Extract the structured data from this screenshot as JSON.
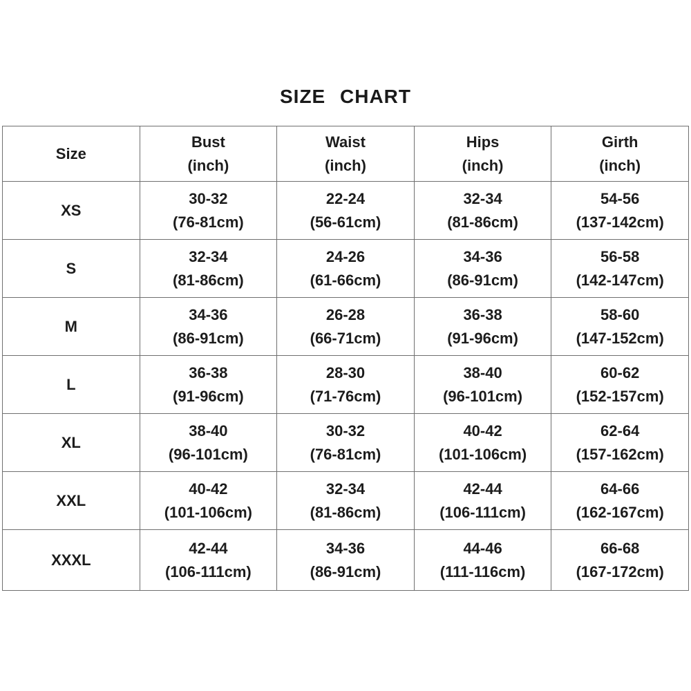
{
  "title": "SIZE CHART",
  "chart_data": {
    "type": "table",
    "title": "SIZE CHART",
    "columns": [
      {
        "label": "Size",
        "unit": ""
      },
      {
        "label": "Bust",
        "unit": "(inch)"
      },
      {
        "label": "Waist",
        "unit": "(inch)"
      },
      {
        "label": "Hips",
        "unit": "(inch)"
      },
      {
        "label": "Girth",
        "unit": "(inch)"
      }
    ],
    "rows": [
      {
        "size": "XS",
        "cells": [
          {
            "inch": "30-32",
            "cm": "(76-81cm)"
          },
          {
            "inch": "22-24",
            "cm": "(56-61cm)"
          },
          {
            "inch": "32-34",
            "cm": "(81-86cm)"
          },
          {
            "inch": "54-56",
            "cm": "(137-142cm)"
          }
        ]
      },
      {
        "size": "S",
        "cells": [
          {
            "inch": "32-34",
            "cm": "(81-86cm)"
          },
          {
            "inch": "24-26",
            "cm": "(61-66cm)"
          },
          {
            "inch": "34-36",
            "cm": "(86-91cm)"
          },
          {
            "inch": "56-58",
            "cm": "(142-147cm)"
          }
        ]
      },
      {
        "size": "M",
        "cells": [
          {
            "inch": "34-36",
            "cm": "(86-91cm)"
          },
          {
            "inch": "26-28",
            "cm": "(66-71cm)"
          },
          {
            "inch": "36-38",
            "cm": "(91-96cm)"
          },
          {
            "inch": "58-60",
            "cm": "(147-152cm)"
          }
        ]
      },
      {
        "size": "L",
        "cells": [
          {
            "inch": "36-38",
            "cm": "(91-96cm)"
          },
          {
            "inch": "28-30",
            "cm": "(71-76cm)"
          },
          {
            "inch": "38-40",
            "cm": "(96-101cm)"
          },
          {
            "inch": "60-62",
            "cm": "(152-157cm)"
          }
        ]
      },
      {
        "size": "XL",
        "cells": [
          {
            "inch": "38-40",
            "cm": "(96-101cm)"
          },
          {
            "inch": "30-32",
            "cm": "(76-81cm)"
          },
          {
            "inch": "40-42",
            "cm": "(101-106cm)"
          },
          {
            "inch": "62-64",
            "cm": "(157-162cm)"
          }
        ]
      },
      {
        "size": "XXL",
        "cells": [
          {
            "inch": "40-42",
            "cm": "(101-106cm)"
          },
          {
            "inch": "32-34",
            "cm": "(81-86cm)"
          },
          {
            "inch": "42-44",
            "cm": "(106-111cm)"
          },
          {
            "inch": "64-66",
            "cm": "(162-167cm)"
          }
        ]
      },
      {
        "size": "XXXL",
        "cells": [
          {
            "inch": "42-44",
            "cm": "(106-111cm)"
          },
          {
            "inch": "34-36",
            "cm": "(86-91cm)"
          },
          {
            "inch": "44-46",
            "cm": "(111-116cm)"
          },
          {
            "inch": "66-68",
            "cm": "(167-172cm)"
          }
        ]
      }
    ],
    "colors": {
      "text": "#1c1c1c",
      "border": "#6f6f6f",
      "background": "#ffffff"
    }
  }
}
